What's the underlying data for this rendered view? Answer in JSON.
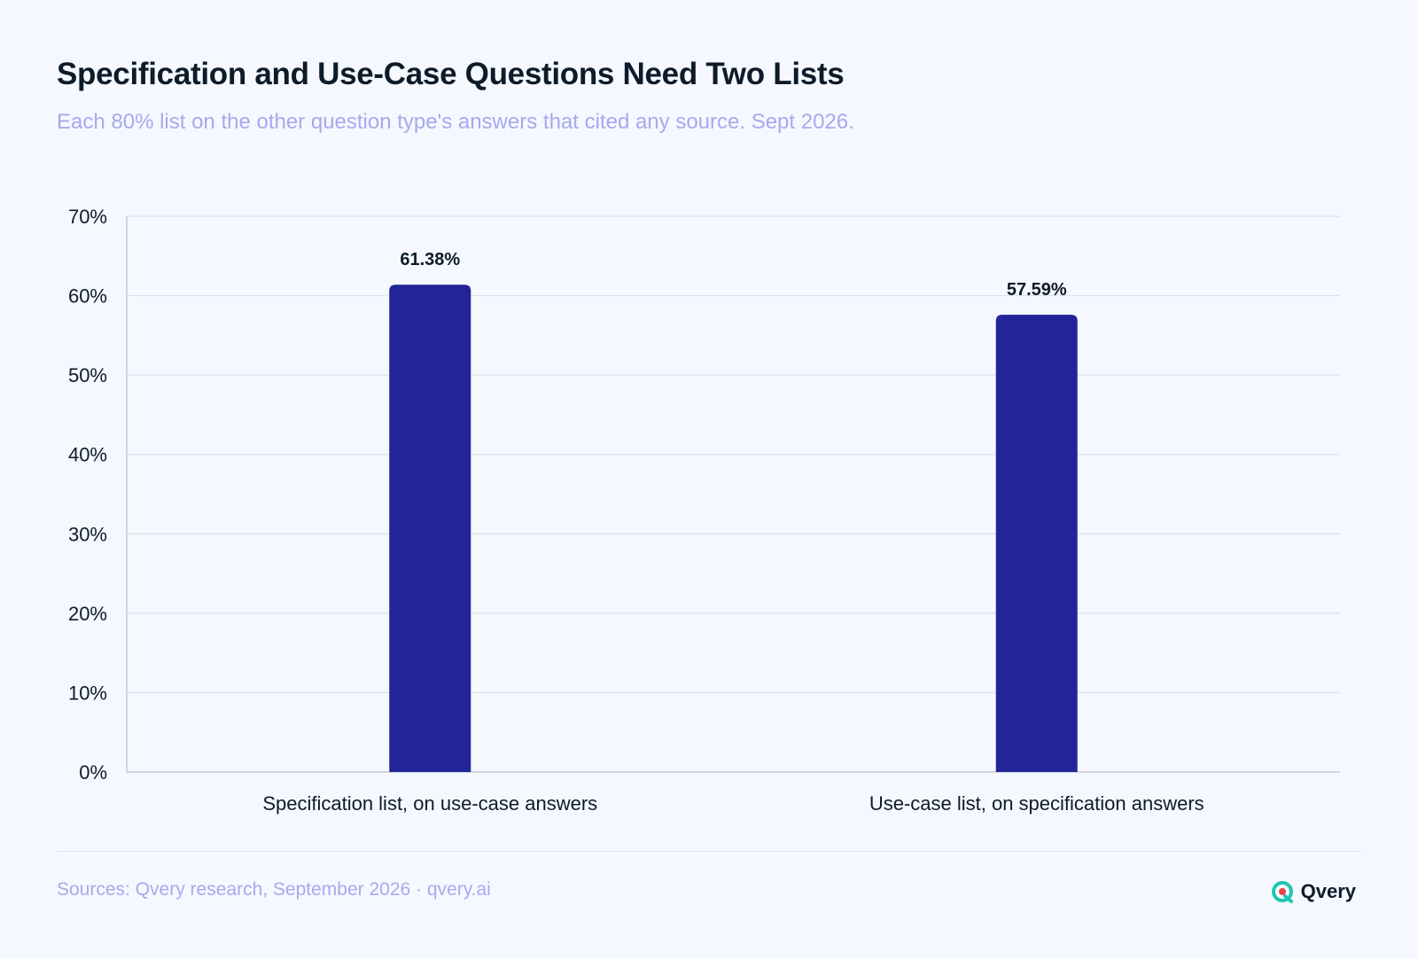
{
  "header": {
    "title": "Specification and Use-Case Questions Need Two Lists",
    "subtitle": "Each 80% list on the other question type's answers that cited any source. Sept 2026."
  },
  "footer": {
    "sources": "Sources: Qvery research, September 2026 · qvery.ai",
    "brand": "Qvery"
  },
  "colors": {
    "bar": "#212598",
    "grid": "#dde1ea",
    "axis": "#c3c7d1",
    "text": "#0d1b2a",
    "muted": "#a7a9ee",
    "brand_teal": "#1fc7b0",
    "brand_red": "#e8434a"
  },
  "icons": {
    "logo": "qvery-logo-icon"
  },
  "chart_data": {
    "type": "bar",
    "categories": [
      "Specification list, on use-case answers",
      "Use-case list, on specification answers"
    ],
    "values": [
      61.38,
      57.59
    ],
    "value_labels": [
      "61.38%",
      "57.59%"
    ],
    "ylim": [
      0,
      70
    ],
    "yticks": [
      0,
      10,
      20,
      30,
      40,
      50,
      60,
      70
    ],
    "ytick_labels": [
      "0%",
      "10%",
      "20%",
      "30%",
      "40%",
      "50%",
      "60%",
      "70%"
    ],
    "grid": true,
    "legend": "none"
  }
}
